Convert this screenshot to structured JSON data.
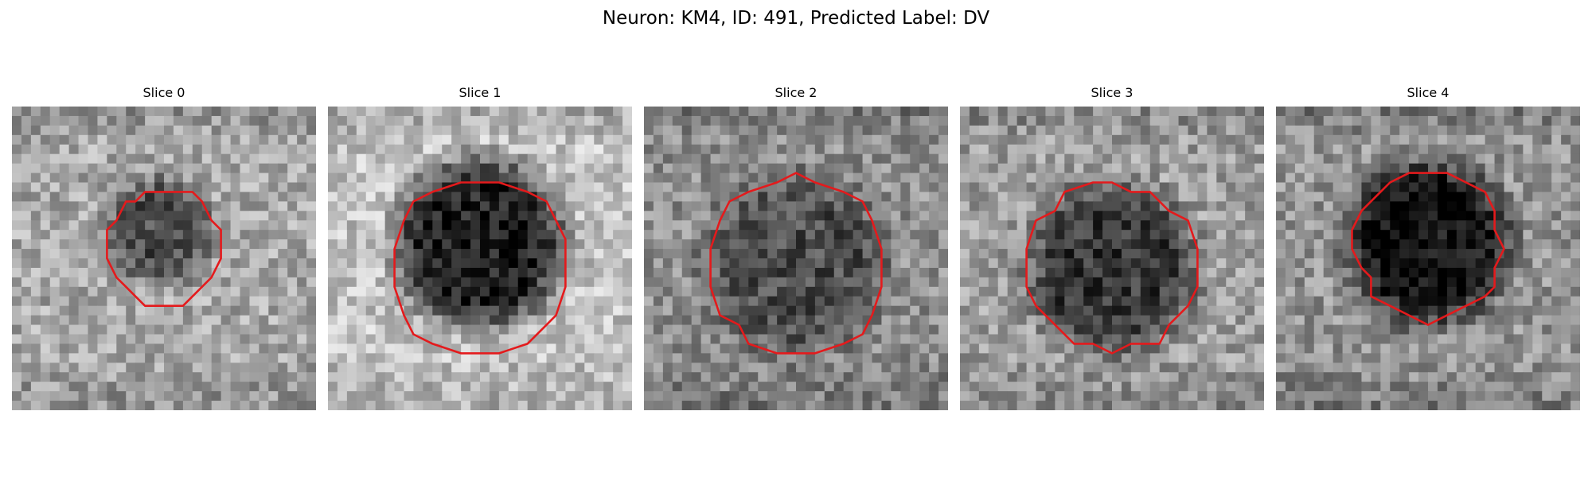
{
  "title": "Neuron: KM4, ID: 491, Predicted Label: DV",
  "outline_color": "#e41a1c",
  "slices": [
    {
      "label": "Slice 0",
      "base": 0.66,
      "spot": 0.3,
      "spot_x": 0.49,
      "spot_y": 0.41,
      "spot_r": 0.17,
      "outline_x": 0.5,
      "outline_y": 0.46,
      "outline_r": 0.19
    },
    {
      "label": "Slice 1",
      "base": 0.76,
      "spot": 0.12,
      "spot_x": 0.5,
      "spot_y": 0.45,
      "spot_r": 0.27,
      "outline_x": 0.5,
      "outline_y": 0.53,
      "outline_r": 0.29
    },
    {
      "label": "Slice 2",
      "base": 0.56,
      "spot": 0.3,
      "spot_x": 0.5,
      "spot_y": 0.52,
      "spot_r": 0.29,
      "outline_x": 0.5,
      "outline_y": 0.53,
      "outline_r": 0.29
    },
    {
      "label": "Slice 3",
      "base": 0.62,
      "spot": 0.22,
      "spot_x": 0.5,
      "spot_y": 0.53,
      "spot_r": 0.27,
      "outline_x": 0.5,
      "outline_y": 0.53,
      "outline_r": 0.28
    },
    {
      "label": "Slice 4",
      "base": 0.58,
      "spot": 0.06,
      "spot_x": 0.5,
      "spot_y": 0.45,
      "spot_r": 0.26,
      "outline_x": 0.5,
      "outline_y": 0.46,
      "outline_r": 0.24
    }
  ]
}
